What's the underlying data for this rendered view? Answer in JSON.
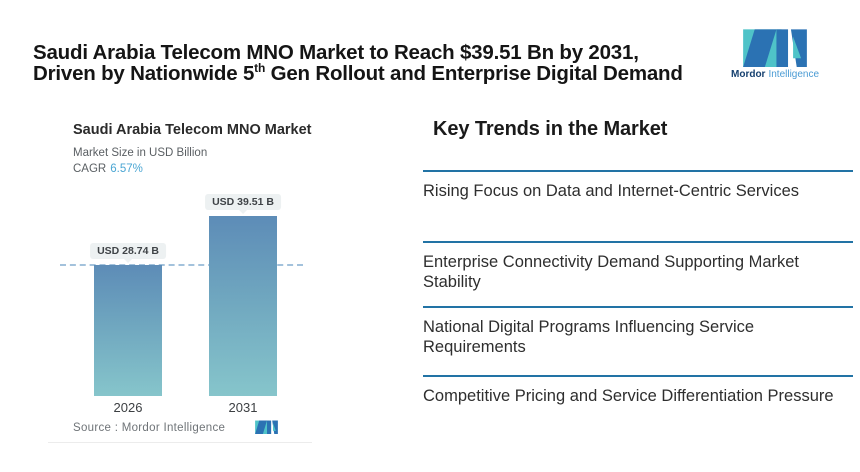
{
  "header": {
    "title_line1": "Saudi Arabia Telecom MNO Market to Reach $39.51 Bn by 2031,",
    "title_line2_prefix": "Driven by Nationwide 5",
    "title_line2_sup": "th",
    "title_line2_suffix": " Gen Rollout and Enterprise Digital Demand"
  },
  "brand": {
    "name_bold": "Mordor",
    "name_light": "Intelligence",
    "colors": {
      "teal": "#4fc3c8",
      "blue": "#2b72b3",
      "dark_text": "#15406f",
      "light_text": "#4a9bd4"
    }
  },
  "chart_card": {
    "title": "Saudi Arabia Telecom MNO Market",
    "subtitle": "Market Size in USD Billion",
    "cagr_label": "CAGR",
    "cagr_value": "6.57%",
    "source_label": "Source :  Mordor Intelligence",
    "accent": "#4ba6d3",
    "pill_bg": "#edf1f2",
    "baseline_color": "#a3c2dc"
  },
  "chart_data": {
    "type": "bar",
    "title": "Saudi Arabia Telecom MNO Market",
    "subtitle": "Market Size in USD Billion",
    "unit": "USD Billion",
    "cagr": "6.57%",
    "categories": [
      "2026",
      "2031"
    ],
    "values": [
      28.74,
      39.51
    ],
    "value_labels": [
      "USD 28.74 B",
      "USD 39.51 B"
    ],
    "ylim": [
      0,
      39.51
    ],
    "grid": false,
    "legend": "none",
    "baseline": {
      "style": "dashed",
      "at_value": 28.74
    },
    "bar_gradient": [
      "#5d8cb7",
      "#86c5cb"
    ]
  },
  "trends": {
    "heading": "Key Trends in the Market",
    "divider_color": "#2273a5",
    "items": [
      "Rising Focus on Data and Internet-Centric Services",
      "Enterprise Connectivity Demand Supporting Market Stability",
      "National Digital Programs Influencing Service Requirements",
      "Competitive Pricing and Service Differentiation Pressure"
    ]
  }
}
